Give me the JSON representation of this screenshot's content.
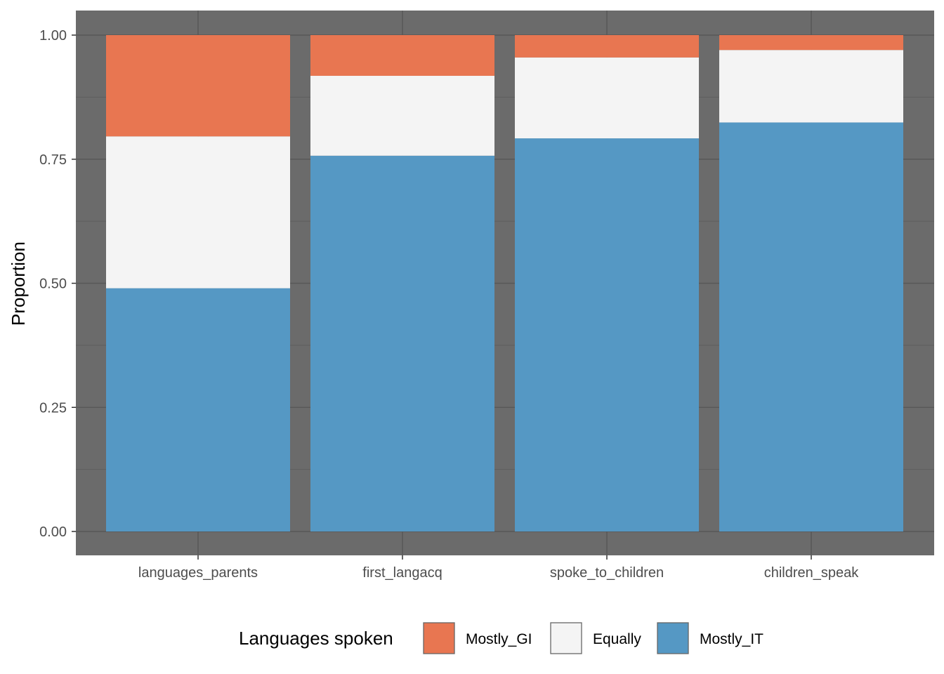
{
  "chart_data": {
    "type": "bar",
    "stacked": true,
    "categories": [
      "languages_parents",
      "first_langacq",
      "spoke_to_children",
      "children_speak"
    ],
    "series": [
      {
        "name": "Mostly_IT",
        "values": [
          0.49,
          0.757,
          0.792,
          0.824
        ],
        "color": "#5598c4"
      },
      {
        "name": "Equally",
        "values": [
          0.306,
          0.161,
          0.163,
          0.146
        ],
        "color": "#f4f4f4"
      },
      {
        "name": "Mostly_GI",
        "values": [
          0.204,
          0.082,
          0.045,
          0.03
        ],
        "color": "#e87651"
      }
    ],
    "stack_order": [
      "Mostly_IT",
      "Equally",
      "Mostly_GI"
    ],
    "title": "",
    "xlabel": "",
    "ylabel": "Proportion",
    "ylim": [
      0,
      1
    ],
    "yticks": [
      "0.00",
      "0.25",
      "0.50",
      "0.75",
      "1.00"
    ],
    "grid": true,
    "panel_background": "#6b6b6b",
    "legend": {
      "title": "Languages spoken",
      "position": "bottom",
      "items": [
        "Mostly_GI",
        "Equally",
        "Mostly_IT"
      ]
    }
  }
}
